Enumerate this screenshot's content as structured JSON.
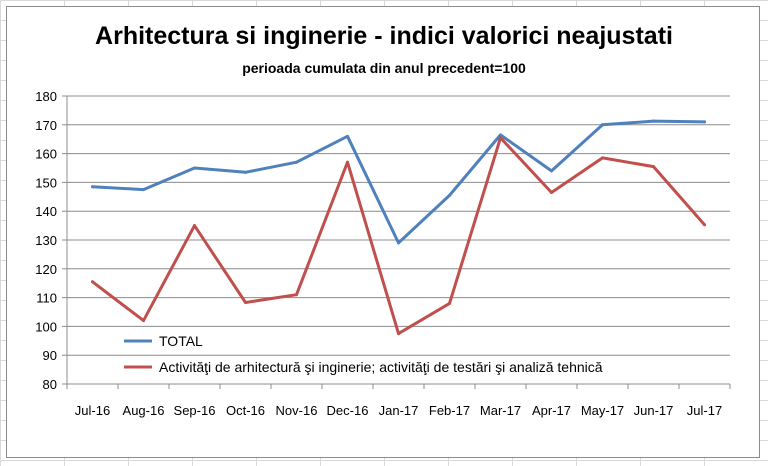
{
  "chart_data": {
    "type": "line",
    "title": "Arhitectura si inginerie - indici valorici neajustati",
    "subtitle": "perioada cumulata din anul precedent=100",
    "categories": [
      "Jul-16",
      "Aug-16",
      "Sep-16",
      "Oct-16",
      "Nov-16",
      "Dec-16",
      "Jan-17",
      "Feb-17",
      "Mar-17",
      "Apr-17",
      "May-17",
      "Jun-17",
      "Jul-17"
    ],
    "ylim": [
      80,
      180
    ],
    "yticks": [
      80,
      90,
      100,
      110,
      120,
      130,
      140,
      150,
      160,
      170,
      180
    ],
    "grid": true,
    "legend_position": "inside-bottom-left",
    "series": [
      {
        "name": "TOTAL",
        "color": "#4f81bd",
        "values": [
          148.5,
          147.5,
          155.0,
          153.5,
          157.0,
          166.0,
          129.0,
          145.5,
          166.5,
          154.0,
          170.0,
          171.3,
          171.0
        ]
      },
      {
        "name": "Activităţi de arhitectură şi inginerie; activităţi de testări şi analiză tehnică",
        "color": "#c0504d",
        "values": [
          115.5,
          102.0,
          135.0,
          108.3,
          111.0,
          157.0,
          97.5,
          108.0,
          165.5,
          146.5,
          158.5,
          155.5,
          135.3
        ]
      }
    ]
  }
}
